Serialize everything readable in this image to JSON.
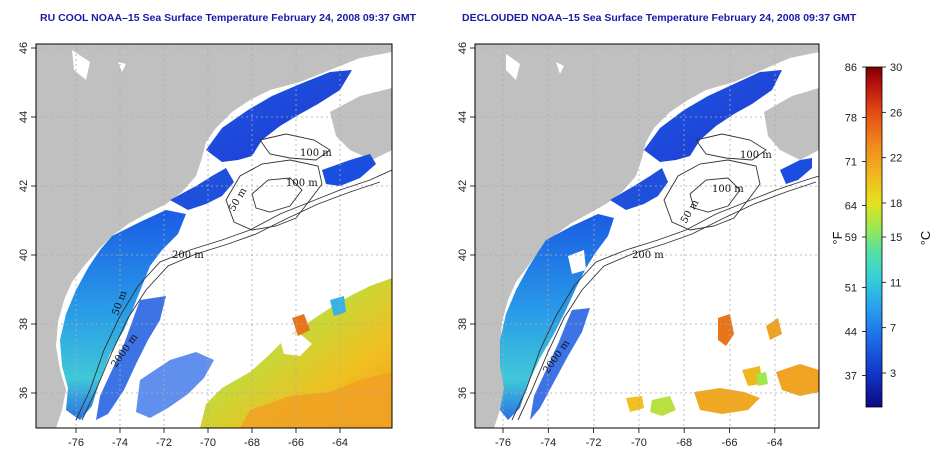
{
  "colors": {
    "land": "#c0c0c0",
    "ocean_nodata": "#ffffff",
    "title": "#1a1aa8",
    "colorbar": [
      "#0a0a82",
      "#1236c8",
      "#1e6be8",
      "#2aa4ee",
      "#36d0d8",
      "#58e0a0",
      "#9ee84e",
      "#e4e21e",
      "#f0b820",
      "#f08a1e",
      "#e04a14",
      "#b8100e",
      "#7a0000"
    ]
  },
  "panels": [
    {
      "title": "RU COOL NOAA–15 Sea Surface Temperature February 24, 2008 09:37 GMT",
      "image": "sst-raw-map",
      "lon_ticks": [
        "-76",
        "-74",
        "-72",
        "-70",
        "-68",
        "-66",
        "-64"
      ],
      "lat_ticks": [
        "46",
        "44",
        "42",
        "40",
        "38",
        "36"
      ],
      "contours": [
        "100 m",
        "50 m",
        "100 m",
        "200 m",
        "50 m",
        "2000 m"
      ]
    },
    {
      "title": "DECLOUDED NOAA–15 Sea Surface Temperature February 24, 2008 09:37 GMT",
      "image": "sst-declouded-map",
      "lon_ticks": [
        "-76",
        "-74",
        "-72",
        "-70",
        "-68",
        "-66",
        "-64"
      ],
      "lat_ticks": [
        "46",
        "44",
        "42",
        "40",
        "38",
        "36"
      ],
      "contours": [
        "100 m",
        "100 m",
        "50 m",
        "200 m",
        "2000 m"
      ]
    }
  ],
  "colorbar": {
    "fahrenheit_ticks": [
      "86",
      "78",
      "71",
      "64",
      "59",
      "51",
      "44",
      "37"
    ],
    "celsius_ticks": [
      "30",
      "26",
      "22",
      "18",
      "15",
      "11",
      "7",
      "3"
    ],
    "fahrenheit_unit": "°F",
    "celsius_unit": "°C",
    "range_c": [
      0,
      30
    ]
  }
}
